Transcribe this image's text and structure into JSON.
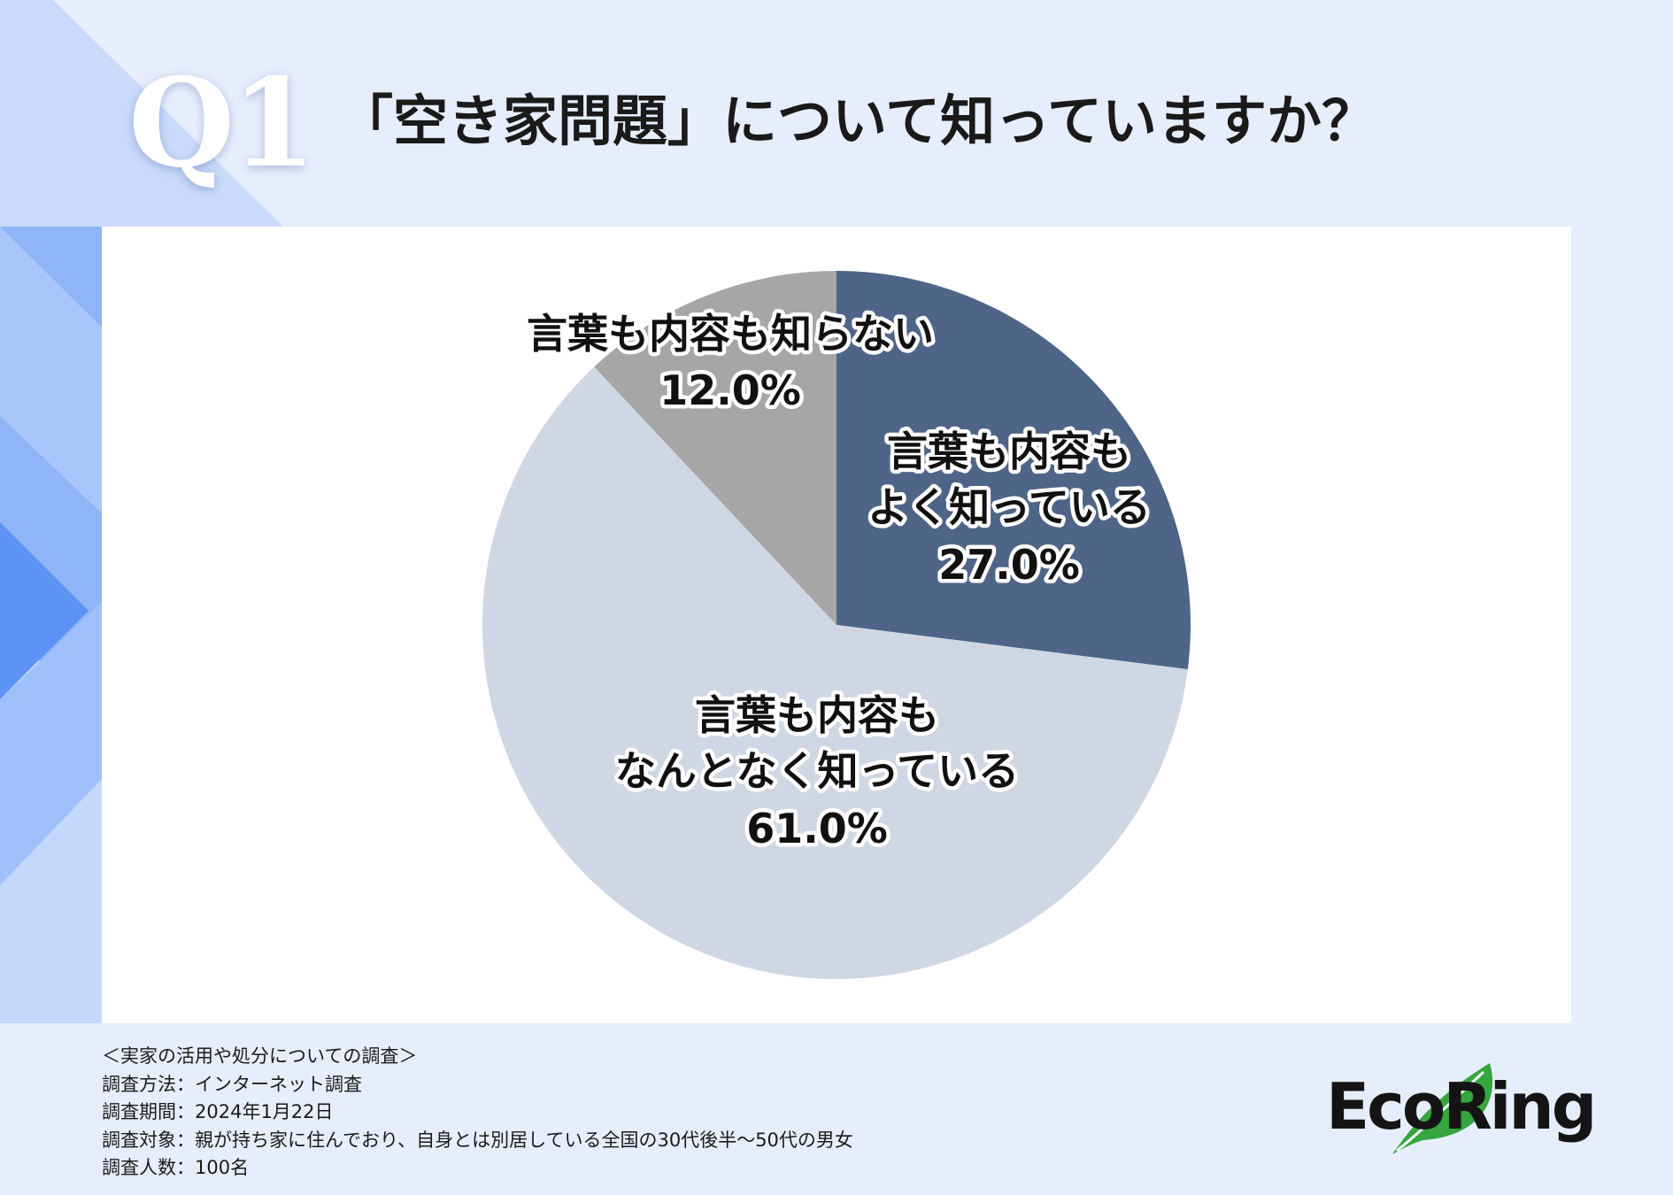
{
  "question": {
    "number": "Q1",
    "title": "「空き家問題」について知っていますか？"
  },
  "colors": {
    "background": "#e6eefc",
    "panel": "#ffffff",
    "slice_well_known": "#4f6588",
    "slice_vaguely_known": "#cfd7e4",
    "slice_unknown": "#a6a6a6",
    "logo_leaf": "#35a63e"
  },
  "chart_data": {
    "type": "pie",
    "start": "12 o'clock",
    "direction": "clockwise",
    "slices": [
      {
        "label_lines": [
          "言葉も内容も",
          "よく知っている"
        ],
        "value": 27.0,
        "value_label": "27.0%",
        "color": "#4f6588"
      },
      {
        "label_lines": [
          "言葉も内容も",
          "なんとなく知っている"
        ],
        "value": 61.0,
        "value_label": "61.0%",
        "color": "#cfd7e4"
      },
      {
        "label_lines": [
          "言葉も内容も知らない"
        ],
        "value": 12.0,
        "value_label": "12.0%",
        "color": "#a6a6a6"
      }
    ]
  },
  "survey": {
    "heading": "＜実家の活用や処分についての調査＞",
    "method": "調査方法：インターネット調査",
    "period": "調査期間：2024年1月22日",
    "target": "調査対象：親が持ち家に住んでおり、自身とは別居している全国の30代後半〜50代の男女",
    "respondents": "調査人数：100名"
  },
  "logo": {
    "text": "EcoRing",
    "icon": "leaf-icon"
  }
}
